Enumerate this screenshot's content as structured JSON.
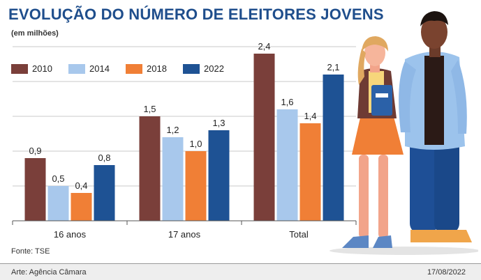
{
  "header": {
    "title": "EVOLUÇÃO DO NÚMERO DE ELEITORES JOVENS",
    "subtitle": "(em milhões)"
  },
  "source": "Fonte: TSE",
  "footer": {
    "credit": "Arte: Agência Câmara",
    "date": "17/08/2022"
  },
  "colors": {
    "2010": "#7a3f3a",
    "2014": "#a8c8ec",
    "2018": "#f07f36",
    "2022": "#1e5294"
  },
  "chart_data": {
    "type": "bar",
    "categories": [
      "16 anos",
      "17 anos",
      "Total"
    ],
    "series": [
      {
        "name": "2010",
        "values": [
          0.9,
          1.5,
          2.4
        ],
        "labels": [
          "0,9",
          "1,5",
          "2,4"
        ]
      },
      {
        "name": "2014",
        "values": [
          0.5,
          1.2,
          1.6
        ],
        "labels": [
          "0,5",
          "1,2",
          "1,6"
        ]
      },
      {
        "name": "2018",
        "values": [
          0.4,
          1.0,
          1.4
        ],
        "labels": [
          "0,4",
          "1,0",
          "1,4"
        ]
      },
      {
        "name": "2022",
        "values": [
          0.8,
          1.3,
          2.1
        ],
        "labels": [
          "0,8",
          "1,3",
          "2,1"
        ]
      }
    ],
    "title": "EVOLUÇÃO DO NÚMERO DE ELEITORES JOVENS",
    "subtitle": "(em milhões)",
    "xlabel": "",
    "ylabel": "",
    "ylim": [
      0,
      2.5
    ],
    "grid": true,
    "legend": "top-left"
  }
}
